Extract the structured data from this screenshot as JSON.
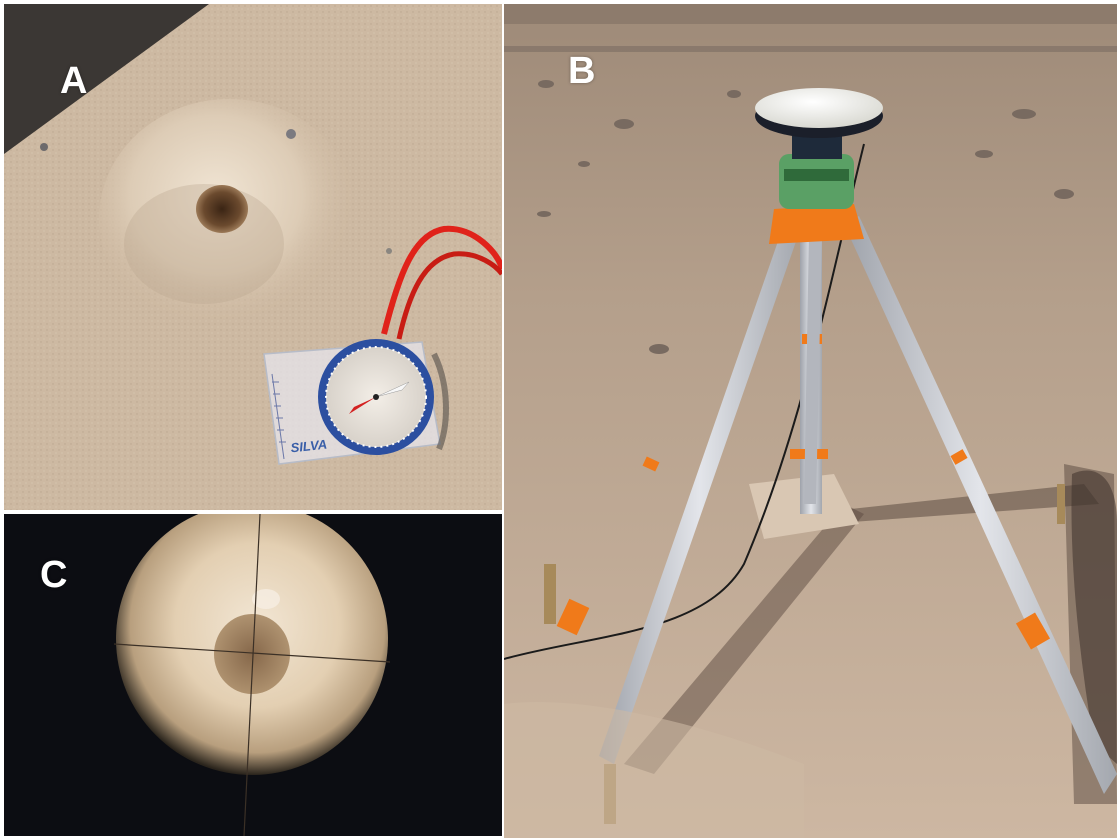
{
  "figure": {
    "panels": [
      {
        "id": "A",
        "label": "A",
        "content": "sand-hole-with-compass"
      },
      {
        "id": "B",
        "label": "B",
        "content": "gps-receiver-on-tripod"
      },
      {
        "id": "C",
        "label": "C",
        "content": "telescope-crosshair-view"
      }
    ]
  },
  "compass": {
    "brand_text": "SILVA"
  },
  "colors": {
    "sand": "#cdb8a0",
    "sand_light": "#e3d4c0",
    "tripod_orange": "#f07a1a",
    "tripod_leg": "#c9ccd2",
    "strap_red": "#e0221a",
    "antenna_white": "#f2f2ee",
    "scope_dark": "#0c0d12"
  }
}
